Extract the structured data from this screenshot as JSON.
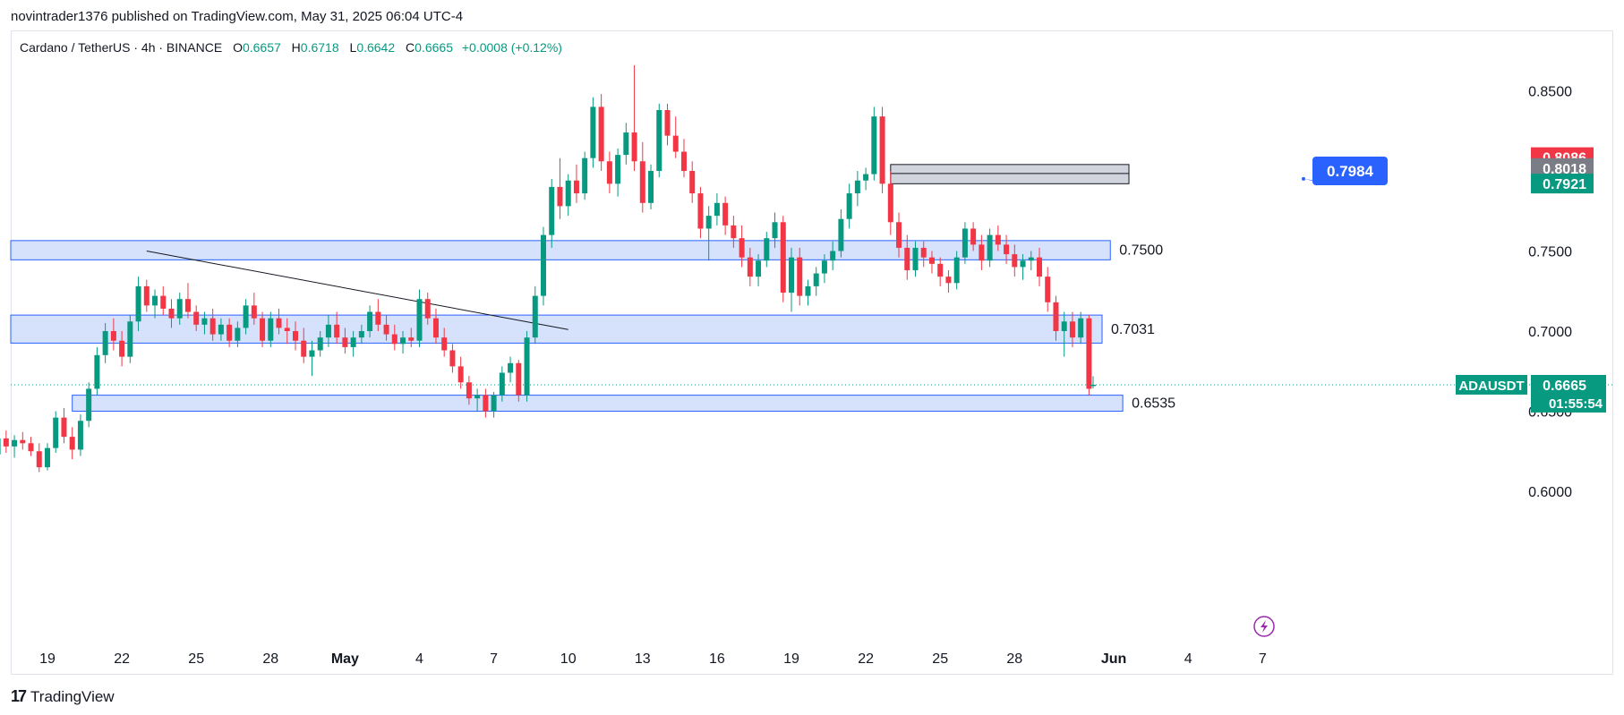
{
  "header": {
    "publisher": "novintrader1376 published on TradingView.com, May 31, 2025 06:04 UTC-4"
  },
  "legend": {
    "symbol": "Cardano / TetherUS · 4h · BINANCE",
    "open_label": "O",
    "open": "0.6657",
    "high_label": "H",
    "high": "0.6718",
    "low_label": "L",
    "low": "0.6642",
    "close_label": "C",
    "close": "0.6665",
    "change": "+0.0008 (+0.12%)"
  },
  "footer": {
    "brand": "TradingView",
    "logo": "17"
  },
  "colors": {
    "up": "#089981",
    "down": "#f23645",
    "zone_fill": "#d6e2fb",
    "zone_border": "#2962ff",
    "grey_zone": "#d1d4dc",
    "badge_blue": "#2962ff",
    "badge_red": "#f23645",
    "badge_grey": "#7a7d85",
    "badge_green": "#089981"
  },
  "chart_data": {
    "type": "candlestick",
    "x_tick_labels": [
      "19",
      "22",
      "25",
      "28",
      "May",
      "4",
      "7",
      "10",
      "13",
      "16",
      "19",
      "22",
      "25",
      "28",
      "Jun",
      "4",
      "7"
    ],
    "y_ticks": [
      0.85,
      0.75,
      0.7,
      0.6
    ],
    "y_tick_labels": [
      "0.8500",
      "0.7500",
      "0.7000",
      "0.6000"
    ],
    "y_range": [
      0.57,
      0.87
    ],
    "current_price": {
      "label": "ADAUSDT",
      "price": "0.6665",
      "countdown": "01:55:54",
      "value": 0.6665,
      "hidden_tick": "0.6500"
    },
    "price_badges": [
      {
        "label": "0.8086",
        "value": 0.8086,
        "color": "red"
      },
      {
        "label": "0.8018",
        "value": 0.8018,
        "color": "grey"
      },
      {
        "label": "0.7921",
        "value": 0.7921,
        "color": "green"
      }
    ],
    "zones": [
      {
        "label": "0.7500",
        "top": 0.7565,
        "bottom": 0.7445,
        "from": "Apr 16",
        "to": "May 31 12:00"
      },
      {
        "label": "0.7031",
        "top": 0.71,
        "bottom": 0.6925,
        "from": "Apr 16",
        "to": "May 31 04:00"
      },
      {
        "label": "0.6535",
        "top": 0.66,
        "bottom": 0.65,
        "from": "Apr 20",
        "to": "Jun 1"
      }
    ],
    "supply_zone": {
      "top": 0.804,
      "bottom": 0.792,
      "from": "May 23",
      "to": "May 31 04:00",
      "marker_value": 0.7984
    },
    "callout": {
      "label": "0.7984",
      "value": 0.7984
    },
    "trendline": [
      {
        "date": "Apr 23",
        "value": 0.75
      },
      {
        "date": "May 10",
        "value": 0.701
      }
    ],
    "candles": [
      {
        "d": "Apr 16 00:00",
        "o": 0.617,
        "h": 0.624,
        "l": 0.612,
        "c": 0.615
      },
      {
        "d": "Apr 16 08:00",
        "o": 0.615,
        "h": 0.622,
        "l": 0.611,
        "c": 0.619
      },
      {
        "d": "Apr 16 16:00",
        "o": 0.619,
        "h": 0.628,
        "l": 0.615,
        "c": 0.623
      },
      {
        "d": "Apr 17 00:00",
        "o": 0.623,
        "h": 0.636,
        "l": 0.62,
        "c": 0.633
      },
      {
        "d": "Apr 17 08:00",
        "o": 0.633,
        "h": 0.638,
        "l": 0.624,
        "c": 0.628
      },
      {
        "d": "Apr 17 16:00",
        "o": 0.628,
        "h": 0.635,
        "l": 0.621,
        "c": 0.632
      },
      {
        "d": "Apr 18 00:00",
        "o": 0.632,
        "h": 0.637,
        "l": 0.626,
        "c": 0.63
      },
      {
        "d": "Apr 18 08:00",
        "o": 0.63,
        "h": 0.634,
        "l": 0.622,
        "c": 0.625
      },
      {
        "d": "Apr 18 16:00",
        "o": 0.625,
        "h": 0.63,
        "l": 0.612,
        "c": 0.615
      },
      {
        "d": "Apr 19 00:00",
        "o": 0.615,
        "h": 0.63,
        "l": 0.613,
        "c": 0.627
      },
      {
        "d": "Apr 19 08:00",
        "o": 0.627,
        "h": 0.65,
        "l": 0.624,
        "c": 0.646
      },
      {
        "d": "Apr 19 16:00",
        "o": 0.646,
        "h": 0.652,
        "l": 0.63,
        "c": 0.634
      },
      {
        "d": "Apr 20 00:00",
        "o": 0.634,
        "h": 0.64,
        "l": 0.62,
        "c": 0.626
      },
      {
        "d": "Apr 20 08:00",
        "o": 0.626,
        "h": 0.648,
        "l": 0.622,
        "c": 0.644
      },
      {
        "d": "Apr 20 16:00",
        "o": 0.644,
        "h": 0.668,
        "l": 0.64,
        "c": 0.664
      },
      {
        "d": "Apr 21 00:00",
        "o": 0.664,
        "h": 0.69,
        "l": 0.66,
        "c": 0.685
      },
      {
        "d": "Apr 21 08:00",
        "o": 0.685,
        "h": 0.705,
        "l": 0.68,
        "c": 0.7
      },
      {
        "d": "Apr 21 16:00",
        "o": 0.7,
        "h": 0.708,
        "l": 0.688,
        "c": 0.694
      },
      {
        "d": "Apr 22 00:00",
        "o": 0.694,
        "h": 0.7,
        "l": 0.678,
        "c": 0.684
      },
      {
        "d": "Apr 22 08:00",
        "o": 0.684,
        "h": 0.71,
        "l": 0.68,
        "c": 0.706
      },
      {
        "d": "Apr 22 16:00",
        "o": 0.706,
        "h": 0.734,
        "l": 0.7,
        "c": 0.728
      },
      {
        "d": "Apr 23 00:00",
        "o": 0.728,
        "h": 0.732,
        "l": 0.712,
        "c": 0.716
      },
      {
        "d": "Apr 23 08:00",
        "o": 0.716,
        "h": 0.726,
        "l": 0.708,
        "c": 0.722
      },
      {
        "d": "Apr 23 16:00",
        "o": 0.722,
        "h": 0.728,
        "l": 0.71,
        "c": 0.714
      },
      {
        "d": "Apr 24 00:00",
        "o": 0.714,
        "h": 0.72,
        "l": 0.702,
        "c": 0.708
      },
      {
        "d": "Apr 24 08:00",
        "o": 0.708,
        "h": 0.724,
        "l": 0.704,
        "c": 0.72
      },
      {
        "d": "Apr 24 16:00",
        "o": 0.72,
        "h": 0.73,
        "l": 0.708,
        "c": 0.712
      },
      {
        "d": "Apr 25 00:00",
        "o": 0.712,
        "h": 0.716,
        "l": 0.7,
        "c": 0.704
      },
      {
        "d": "Apr 25 08:00",
        "o": 0.704,
        "h": 0.712,
        "l": 0.698,
        "c": 0.708
      },
      {
        "d": "Apr 25 16:00",
        "o": 0.708,
        "h": 0.714,
        "l": 0.694,
        "c": 0.698
      },
      {
        "d": "Apr 26 00:00",
        "o": 0.698,
        "h": 0.708,
        "l": 0.694,
        "c": 0.704
      },
      {
        "d": "Apr 26 08:00",
        "o": 0.704,
        "h": 0.708,
        "l": 0.69,
        "c": 0.694
      },
      {
        "d": "Apr 26 16:00",
        "o": 0.694,
        "h": 0.706,
        "l": 0.69,
        "c": 0.702
      },
      {
        "d": "Apr 27 00:00",
        "o": 0.702,
        "h": 0.72,
        "l": 0.698,
        "c": 0.716
      },
      {
        "d": "Apr 27 08:00",
        "o": 0.716,
        "h": 0.724,
        "l": 0.704,
        "c": 0.708
      },
      {
        "d": "Apr 27 16:00",
        "o": 0.708,
        "h": 0.712,
        "l": 0.69,
        "c": 0.694
      },
      {
        "d": "Apr 28 00:00",
        "o": 0.694,
        "h": 0.712,
        "l": 0.69,
        "c": 0.708
      },
      {
        "d": "Apr 28 08:00",
        "o": 0.708,
        "h": 0.714,
        "l": 0.698,
        "c": 0.702
      },
      {
        "d": "Apr 28 16:00",
        "o": 0.702,
        "h": 0.708,
        "l": 0.692,
        "c": 0.7
      },
      {
        "d": "Apr 29 00:00",
        "o": 0.7,
        "h": 0.706,
        "l": 0.688,
        "c": 0.694
      },
      {
        "d": "Apr 29 08:00",
        "o": 0.694,
        "h": 0.702,
        "l": 0.68,
        "c": 0.684
      },
      {
        "d": "Apr 29 16:00",
        "o": 0.684,
        "h": 0.694,
        "l": 0.672,
        "c": 0.688
      },
      {
        "d": "Apr 30 00:00",
        "o": 0.688,
        "h": 0.7,
        "l": 0.684,
        "c": 0.696
      },
      {
        "d": "Apr 30 08:00",
        "o": 0.696,
        "h": 0.71,
        "l": 0.69,
        "c": 0.704
      },
      {
        "d": "Apr 30 16:00",
        "o": 0.704,
        "h": 0.712,
        "l": 0.692,
        "c": 0.696
      },
      {
        "d": "May 1 00:00",
        "o": 0.696,
        "h": 0.702,
        "l": 0.686,
        "c": 0.69
      },
      {
        "d": "May 1 08:00",
        "o": 0.69,
        "h": 0.7,
        "l": 0.684,
        "c": 0.696
      },
      {
        "d": "May 1 16:00",
        "o": 0.696,
        "h": 0.704,
        "l": 0.692,
        "c": 0.7
      },
      {
        "d": "May 2 00:00",
        "o": 0.7,
        "h": 0.716,
        "l": 0.696,
        "c": 0.712
      },
      {
        "d": "May 2 08:00",
        "o": 0.712,
        "h": 0.72,
        "l": 0.7,
        "c": 0.704
      },
      {
        "d": "May 2 16:00",
        "o": 0.704,
        "h": 0.71,
        "l": 0.694,
        "c": 0.698
      },
      {
        "d": "May 3 00:00",
        "o": 0.698,
        "h": 0.704,
        "l": 0.688,
        "c": 0.692
      },
      {
        "d": "May 3 08:00",
        "o": 0.692,
        "h": 0.7,
        "l": 0.686,
        "c": 0.696
      },
      {
        "d": "May 3 16:00",
        "o": 0.696,
        "h": 0.702,
        "l": 0.69,
        "c": 0.694
      },
      {
        "d": "May 4 00:00",
        "o": 0.694,
        "h": 0.726,
        "l": 0.69,
        "c": 0.72
      },
      {
        "d": "May 4 08:00",
        "o": 0.72,
        "h": 0.724,
        "l": 0.704,
        "c": 0.708
      },
      {
        "d": "May 4 16:00",
        "o": 0.708,
        "h": 0.714,
        "l": 0.692,
        "c": 0.696
      },
      {
        "d": "May 5 00:00",
        "o": 0.696,
        "h": 0.702,
        "l": 0.684,
        "c": 0.688
      },
      {
        "d": "May 5 08:00",
        "o": 0.688,
        "h": 0.692,
        "l": 0.674,
        "c": 0.678
      },
      {
        "d": "May 5 16:00",
        "o": 0.678,
        "h": 0.684,
        "l": 0.664,
        "c": 0.668
      },
      {
        "d": "May 6 00:00",
        "o": 0.668,
        "h": 0.672,
        "l": 0.654,
        "c": 0.658
      },
      {
        "d": "May 6 08:00",
        "o": 0.658,
        "h": 0.664,
        "l": 0.65,
        "c": 0.66
      },
      {
        "d": "May 6 16:00",
        "o": 0.66,
        "h": 0.664,
        "l": 0.646,
        "c": 0.65
      },
      {
        "d": "May 7 00:00",
        "o": 0.65,
        "h": 0.662,
        "l": 0.646,
        "c": 0.66
      },
      {
        "d": "May 7 08:00",
        "o": 0.66,
        "h": 0.678,
        "l": 0.656,
        "c": 0.674
      },
      {
        "d": "May 7 16:00",
        "o": 0.674,
        "h": 0.684,
        "l": 0.668,
        "c": 0.68
      },
      {
        "d": "May 8 00:00",
        "o": 0.68,
        "h": 0.682,
        "l": 0.656,
        "c": 0.66
      },
      {
        "d": "May 8 08:00",
        "o": 0.66,
        "h": 0.7,
        "l": 0.656,
        "c": 0.696
      },
      {
        "d": "May 8 16:00",
        "o": 0.696,
        "h": 0.728,
        "l": 0.692,
        "c": 0.722
      },
      {
        "d": "May 9 00:00",
        "o": 0.722,
        "h": 0.765,
        "l": 0.716,
        "c": 0.76
      },
      {
        "d": "May 9 08:00",
        "o": 0.76,
        "h": 0.795,
        "l": 0.752,
        "c": 0.79
      },
      {
        "d": "May 9 16:00",
        "o": 0.79,
        "h": 0.808,
        "l": 0.77,
        "c": 0.778
      },
      {
        "d": "May 10 00:00",
        "o": 0.778,
        "h": 0.798,
        "l": 0.772,
        "c": 0.794
      },
      {
        "d": "May 10 08:00",
        "o": 0.794,
        "h": 0.804,
        "l": 0.78,
        "c": 0.786
      },
      {
        "d": "May 10 16:00",
        "o": 0.786,
        "h": 0.812,
        "l": 0.782,
        "c": 0.808
      },
      {
        "d": "May 11 00:00",
        "o": 0.808,
        "h": 0.846,
        "l": 0.802,
        "c": 0.84
      },
      {
        "d": "May 11 08:00",
        "o": 0.84,
        "h": 0.848,
        "l": 0.8,
        "c": 0.806
      },
      {
        "d": "May 11 16:00",
        "o": 0.806,
        "h": 0.812,
        "l": 0.786,
        "c": 0.792
      },
      {
        "d": "May 12 00:00",
        "o": 0.792,
        "h": 0.814,
        "l": 0.784,
        "c": 0.81
      },
      {
        "d": "May 12 08:00",
        "o": 0.81,
        "h": 0.83,
        "l": 0.804,
        "c": 0.824
      },
      {
        "d": "May 12 16:00",
        "o": 0.824,
        "h": 0.866,
        "l": 0.8,
        "c": 0.806
      },
      {
        "d": "May 13 00:00",
        "o": 0.806,
        "h": 0.818,
        "l": 0.774,
        "c": 0.78
      },
      {
        "d": "May 13 08:00",
        "o": 0.78,
        "h": 0.804,
        "l": 0.776,
        "c": 0.8
      },
      {
        "d": "May 13 16:00",
        "o": 0.8,
        "h": 0.842,
        "l": 0.796,
        "c": 0.838
      },
      {
        "d": "May 14 00:00",
        "o": 0.838,
        "h": 0.842,
        "l": 0.816,
        "c": 0.822
      },
      {
        "d": "May 14 08:00",
        "o": 0.822,
        "h": 0.834,
        "l": 0.808,
        "c": 0.812
      },
      {
        "d": "May 14 16:00",
        "o": 0.812,
        "h": 0.82,
        "l": 0.796,
        "c": 0.8
      },
      {
        "d": "May 15 00:00",
        "o": 0.8,
        "h": 0.806,
        "l": 0.78,
        "c": 0.786
      },
      {
        "d": "May 15 08:00",
        "o": 0.786,
        "h": 0.79,
        "l": 0.758,
        "c": 0.764
      },
      {
        "d": "May 15 16:00",
        "o": 0.764,
        "h": 0.778,
        "l": 0.744,
        "c": 0.772
      },
      {
        "d": "May 16 00:00",
        "o": 0.772,
        "h": 0.786,
        "l": 0.766,
        "c": 0.78
      },
      {
        "d": "May 16 08:00",
        "o": 0.78,
        "h": 0.784,
        "l": 0.76,
        "c": 0.766
      },
      {
        "d": "May 16 16:00",
        "o": 0.766,
        "h": 0.772,
        "l": 0.752,
        "c": 0.758
      },
      {
        "d": "May 17 00:00",
        "o": 0.758,
        "h": 0.766,
        "l": 0.74,
        "c": 0.746
      },
      {
        "d": "May 17 08:00",
        "o": 0.746,
        "h": 0.752,
        "l": 0.728,
        "c": 0.734
      },
      {
        "d": "May 17 16:00",
        "o": 0.734,
        "h": 0.748,
        "l": 0.728,
        "c": 0.744
      },
      {
        "d": "May 18 00:00",
        "o": 0.744,
        "h": 0.762,
        "l": 0.74,
        "c": 0.758
      },
      {
        "d": "May 18 08:00",
        "o": 0.758,
        "h": 0.774,
        "l": 0.752,
        "c": 0.768
      },
      {
        "d": "May 18 16:00",
        "o": 0.768,
        "h": 0.772,
        "l": 0.718,
        "c": 0.724
      },
      {
        "d": "May 19 00:00",
        "o": 0.724,
        "h": 0.752,
        "l": 0.712,
        "c": 0.746
      },
      {
        "d": "May 19 08:00",
        "o": 0.746,
        "h": 0.752,
        "l": 0.716,
        "c": 0.722
      },
      {
        "d": "May 19 16:00",
        "o": 0.722,
        "h": 0.732,
        "l": 0.716,
        "c": 0.728
      },
      {
        "d": "May 20 00:00",
        "o": 0.728,
        "h": 0.74,
        "l": 0.722,
        "c": 0.736
      },
      {
        "d": "May 20 08:00",
        "o": 0.736,
        "h": 0.748,
        "l": 0.73,
        "c": 0.744
      },
      {
        "d": "May 20 16:00",
        "o": 0.744,
        "h": 0.756,
        "l": 0.738,
        "c": 0.75
      },
      {
        "d": "May 21 00:00",
        "o": 0.75,
        "h": 0.776,
        "l": 0.746,
        "c": 0.77
      },
      {
        "d": "May 21 08:00",
        "o": 0.77,
        "h": 0.792,
        "l": 0.764,
        "c": 0.786
      },
      {
        "d": "May 21 16:00",
        "o": 0.786,
        "h": 0.8,
        "l": 0.778,
        "c": 0.794
      },
      {
        "d": "May 22 00:00",
        "o": 0.794,
        "h": 0.802,
        "l": 0.788,
        "c": 0.798
      },
      {
        "d": "May 22 08:00",
        "o": 0.798,
        "h": 0.84,
        "l": 0.794,
        "c": 0.834
      },
      {
        "d": "May 22 16:00",
        "o": 0.834,
        "h": 0.84,
        "l": 0.786,
        "c": 0.792
      },
      {
        "d": "May 23 00:00",
        "o": 0.792,
        "h": 0.8,
        "l": 0.76,
        "c": 0.768
      },
      {
        "d": "May 23 08:00",
        "o": 0.768,
        "h": 0.774,
        "l": 0.746,
        "c": 0.752
      },
      {
        "d": "May 23 16:00",
        "o": 0.752,
        "h": 0.76,
        "l": 0.732,
        "c": 0.738
      },
      {
        "d": "May 24 00:00",
        "o": 0.738,
        "h": 0.756,
        "l": 0.734,
        "c": 0.752
      },
      {
        "d": "May 24 08:00",
        "o": 0.752,
        "h": 0.756,
        "l": 0.74,
        "c": 0.746
      },
      {
        "d": "May 24 16:00",
        "o": 0.746,
        "h": 0.75,
        "l": 0.736,
        "c": 0.742
      },
      {
        "d": "May 25 00:00",
        "o": 0.742,
        "h": 0.746,
        "l": 0.728,
        "c": 0.734
      },
      {
        "d": "May 25 08:00",
        "o": 0.734,
        "h": 0.738,
        "l": 0.724,
        "c": 0.73
      },
      {
        "d": "May 25 16:00",
        "o": 0.73,
        "h": 0.75,
        "l": 0.726,
        "c": 0.746
      },
      {
        "d": "May 26 00:00",
        "o": 0.746,
        "h": 0.768,
        "l": 0.742,
        "c": 0.764
      },
      {
        "d": "May 26 08:00",
        "o": 0.764,
        "h": 0.768,
        "l": 0.75,
        "c": 0.754
      },
      {
        "d": "May 26 16:00",
        "o": 0.754,
        "h": 0.76,
        "l": 0.738,
        "c": 0.744
      },
      {
        "d": "May 27 00:00",
        "o": 0.744,
        "h": 0.764,
        "l": 0.74,
        "c": 0.76
      },
      {
        "d": "May 27 08:00",
        "o": 0.76,
        "h": 0.766,
        "l": 0.75,
        "c": 0.754
      },
      {
        "d": "May 27 16:00",
        "o": 0.754,
        "h": 0.76,
        "l": 0.742,
        "c": 0.748
      },
      {
        "d": "May 28 00:00",
        "o": 0.748,
        "h": 0.754,
        "l": 0.734,
        "c": 0.74
      },
      {
        "d": "May 28 08:00",
        "o": 0.74,
        "h": 0.748,
        "l": 0.732,
        "c": 0.744
      },
      {
        "d": "May 28 16:00",
        "o": 0.744,
        "h": 0.75,
        "l": 0.738,
        "c": 0.746
      },
      {
        "d": "May 29 00:00",
        "o": 0.746,
        "h": 0.752,
        "l": 0.728,
        "c": 0.734
      },
      {
        "d": "May 29 08:00",
        "o": 0.734,
        "h": 0.74,
        "l": 0.712,
        "c": 0.718
      },
      {
        "d": "May 29 16:00",
        "o": 0.718,
        "h": 0.722,
        "l": 0.694,
        "c": 0.7
      },
      {
        "d": "May 30 00:00",
        "o": 0.7,
        "h": 0.712,
        "l": 0.684,
        "c": 0.706
      },
      {
        "d": "May 30 08:00",
        "o": 0.706,
        "h": 0.712,
        "l": 0.69,
        "c": 0.696
      },
      {
        "d": "May 30 16:00",
        "o": 0.696,
        "h": 0.712,
        "l": 0.692,
        "c": 0.708
      },
      {
        "d": "May 31 00:00",
        "o": 0.708,
        "h": 0.71,
        "l": 0.66,
        "c": 0.664
      },
      {
        "d": "May 31 04:00",
        "o": 0.6657,
        "h": 0.6718,
        "l": 0.6642,
        "c": 0.6665
      }
    ]
  }
}
